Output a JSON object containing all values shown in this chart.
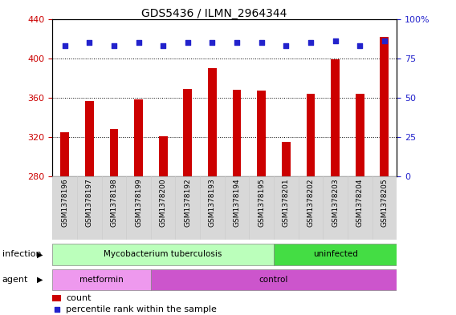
{
  "title": "GDS5436 / ILMN_2964344",
  "samples": [
    "GSM1378196",
    "GSM1378197",
    "GSM1378198",
    "GSM1378199",
    "GSM1378200",
    "GSM1378192",
    "GSM1378193",
    "GSM1378194",
    "GSM1378195",
    "GSM1378201",
    "GSM1378202",
    "GSM1378203",
    "GSM1378204",
    "GSM1378205"
  ],
  "counts": [
    325,
    357,
    328,
    358,
    321,
    369,
    390,
    368,
    367,
    315,
    364,
    399,
    364,
    422
  ],
  "percentiles": [
    83,
    85,
    83,
    85,
    83,
    85,
    85,
    85,
    85,
    83,
    85,
    86,
    83,
    86
  ],
  "ylim_left": [
    280,
    440
  ],
  "ylim_right": [
    0,
    100
  ],
  "yticks_left": [
    280,
    320,
    360,
    400,
    440
  ],
  "yticks_right": [
    0,
    25,
    50,
    75,
    100
  ],
  "bar_color": "#cc0000",
  "dot_color": "#2222cc",
  "bar_width": 0.35,
  "infection_groups": [
    {
      "label": "Mycobacterium tuberculosis",
      "start": 0,
      "end": 8,
      "color": "#bbffbb"
    },
    {
      "label": "uninfected",
      "start": 9,
      "end": 13,
      "color": "#44dd44"
    }
  ],
  "agent_groups": [
    {
      "label": "metformin",
      "start": 0,
      "end": 3,
      "color": "#ee99ee"
    },
    {
      "label": "control",
      "start": 4,
      "end": 13,
      "color": "#cc55cc"
    }
  ],
  "infection_label": "infection",
  "agent_label": "agent",
  "legend_count_label": "count",
  "legend_pct_label": "percentile rank within the sample",
  "tick_label_color_left": "#cc0000",
  "tick_label_color_right": "#2222cc",
  "xlabel_box_color": "#d8d8d8",
  "xlabel_box_edge": "#cccccc"
}
